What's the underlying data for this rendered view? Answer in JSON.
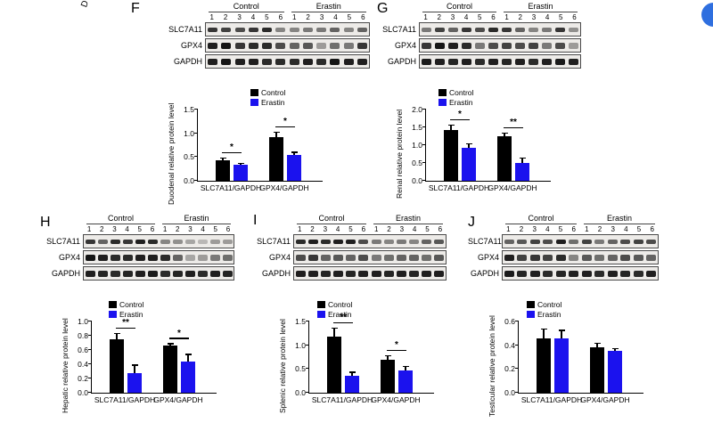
{
  "figure": {
    "decor": {
      "rotated_fragment": "D",
      "corner_badge_color": "#2f6fdf"
    },
    "conditions": [
      "Control",
      "Erastin"
    ],
    "lanes": [
      "1",
      "2",
      "3",
      "4",
      "5",
      "6"
    ],
    "blot_row_labels": [
      "SLC7A11",
      "GPX4",
      "GAPDH"
    ],
    "legend": {
      "control": "Control",
      "erastin": "Erastin"
    },
    "colors": {
      "control": "#000000",
      "erastin": "#1b12ee"
    }
  },
  "panels": [
    {
      "letter": "F",
      "bands": [
        [
          0.8,
          0.75,
          0.7,
          0.8,
          0.85,
          0.45,
          0.45,
          0.5,
          0.5,
          0.6,
          0.45,
          0.6
        ],
        [
          0.9,
          0.95,
          0.8,
          0.85,
          0.85,
          0.7,
          0.6,
          0.65,
          0.35,
          0.55,
          0.5,
          0.8
        ],
        [
          0.9,
          0.95,
          0.9,
          0.9,
          0.85,
          0.85,
          0.85,
          0.9,
          0.85,
          0.95,
          0.9,
          0.9
        ]
      ]
    },
    {
      "letter": "G",
      "bands": [
        [
          0.5,
          0.75,
          0.6,
          0.8,
          0.7,
          0.85,
          0.8,
          0.6,
          0.45,
          0.5,
          0.8,
          0.4
        ],
        [
          0.8,
          0.95,
          0.9,
          0.85,
          0.5,
          0.7,
          0.75,
          0.7,
          0.75,
          0.5,
          0.7,
          0.35
        ],
        [
          0.92,
          0.9,
          0.88,
          0.9,
          0.85,
          0.9,
          0.88,
          0.9,
          0.85,
          0.9,
          0.92,
          0.9
        ]
      ]
    },
    {
      "letter": "H",
      "bands": [
        [
          0.8,
          0.6,
          0.85,
          0.8,
          0.9,
          0.85,
          0.45,
          0.4,
          0.3,
          0.22,
          0.35,
          0.35
        ],
        [
          0.95,
          0.9,
          0.85,
          0.85,
          0.9,
          0.9,
          0.85,
          0.6,
          0.3,
          0.35,
          0.5,
          0.55
        ],
        [
          0.9,
          0.88,
          0.85,
          0.88,
          0.9,
          0.92,
          0.85,
          0.88,
          0.9,
          0.85,
          0.9,
          0.88
        ]
      ]
    },
    {
      "letter": "I",
      "bands": [
        [
          0.85,
          0.9,
          0.85,
          0.9,
          0.9,
          0.7,
          0.5,
          0.45,
          0.5,
          0.45,
          0.6,
          0.65
        ],
        [
          0.7,
          0.8,
          0.6,
          0.65,
          0.6,
          0.7,
          0.5,
          0.55,
          0.6,
          0.6,
          0.55,
          0.65
        ],
        [
          0.9,
          0.9,
          0.88,
          0.9,
          0.88,
          0.9,
          0.9,
          0.88,
          0.9,
          0.88,
          0.9,
          0.9
        ]
      ]
    },
    {
      "letter": "J",
      "bands": [
        [
          0.6,
          0.65,
          0.75,
          0.7,
          0.9,
          0.55,
          0.75,
          0.5,
          0.6,
          0.7,
          0.75,
          0.7
        ],
        [
          0.9,
          0.75,
          0.8,
          0.75,
          0.85,
          0.45,
          0.65,
          0.55,
          0.6,
          0.7,
          0.65,
          0.6
        ],
        [
          0.92,
          0.88,
          0.9,
          0.85,
          0.88,
          0.9,
          0.9,
          0.85,
          0.9,
          0.88,
          0.85,
          0.9
        ]
      ]
    }
  ],
  "chart_data": [
    {
      "type": "bar",
      "panel": "F",
      "ylabel": "Duodenal relative protein level",
      "categories": [
        "SLC7A11/GAPDH",
        "GPX4/GAPDH"
      ],
      "series": [
        {
          "name": "Control",
          "values": [
            0.43,
            0.92
          ],
          "errors": [
            0.04,
            0.09
          ]
        },
        {
          "name": "Erastin",
          "values": [
            0.33,
            0.55
          ],
          "errors": [
            0.02,
            0.04
          ]
        }
      ],
      "significance": [
        "*",
        "*"
      ],
      "ylim": [
        0,
        1.5
      ],
      "yticks": [
        "0.0",
        "0.5",
        "1.0",
        "1.5"
      ],
      "legend_position": "top",
      "grid": false
    },
    {
      "type": "bar",
      "panel": "G",
      "ylabel": "Renal relative protein level",
      "categories": [
        "SLC7A11/GAPDH",
        "GPX4/GAPDH"
      ],
      "series": [
        {
          "name": "Control",
          "values": [
            1.42,
            1.25
          ],
          "errors": [
            0.13,
            0.08
          ]
        },
        {
          "name": "Erastin",
          "values": [
            0.93,
            0.5
          ],
          "errors": [
            0.1,
            0.12
          ]
        }
      ],
      "significance": [
        "*",
        "**"
      ],
      "ylim": [
        0,
        2.0
      ],
      "yticks": [
        "0.0",
        "0.5",
        "1.0",
        "1.5",
        "2.0"
      ],
      "legend_position": "top",
      "grid": false
    },
    {
      "type": "bar",
      "panel": "H",
      "ylabel": "Hepatic relative protein level",
      "categories": [
        "SLC7A11/GAPDH",
        "GPX4/GAPDH"
      ],
      "series": [
        {
          "name": "Control",
          "values": [
            0.75,
            0.66
          ],
          "errors": [
            0.07,
            0.02
          ]
        },
        {
          "name": "Erastin",
          "values": [
            0.28,
            0.44
          ],
          "errors": [
            0.1,
            0.09
          ]
        }
      ],
      "significance": [
        "**",
        "*"
      ],
      "ylim": [
        0,
        1.0
      ],
      "yticks": [
        "0.0",
        "0.2",
        "0.4",
        "0.6",
        "0.8",
        "1.0"
      ],
      "legend_position": "top",
      "grid": false
    },
    {
      "type": "bar",
      "panel": "I",
      "ylabel": "Splenic relative protein level",
      "categories": [
        "SLC7A11/GAPDH",
        "GPX4/GAPDH"
      ],
      "series": [
        {
          "name": "Control",
          "values": [
            1.18,
            0.7
          ],
          "errors": [
            0.17,
            0.07
          ]
        },
        {
          "name": "Erastin",
          "values": [
            0.36,
            0.46
          ],
          "errors": [
            0.06,
            0.08
          ]
        }
      ],
      "significance": [
        "**",
        "*"
      ],
      "ylim": [
        0,
        1.5
      ],
      "yticks": [
        "0.0",
        "0.5",
        "1.0",
        "1.5"
      ],
      "legend_position": "top",
      "grid": false
    },
    {
      "type": "bar",
      "panel": "J",
      "ylabel": "Testicular relative protein level",
      "categories": [
        "SLC7A11/GAPDH",
        "GPX4/GAPDH"
      ],
      "series": [
        {
          "name": "Control",
          "values": [
            0.46,
            0.38
          ],
          "errors": [
            0.07,
            0.03
          ]
        },
        {
          "name": "Erastin",
          "values": [
            0.46,
            0.355
          ],
          "errors": [
            0.06,
            0.01
          ]
        }
      ],
      "significance": [
        null,
        null
      ],
      "ylim": [
        0,
        0.6
      ],
      "yticks": [
        "0.0",
        "0.2",
        "0.4",
        "0.6"
      ],
      "legend_position": "top",
      "grid": false
    }
  ]
}
